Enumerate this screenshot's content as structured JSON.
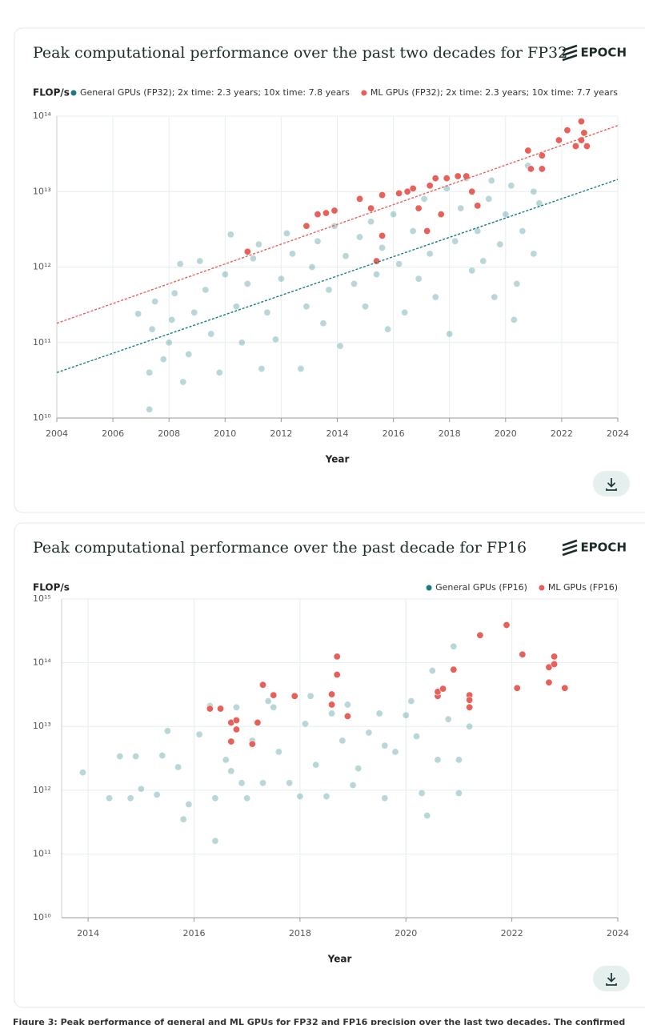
{
  "chart_data": [
    {
      "type": "scatter",
      "title": "Peak computational performance over the past two decades for FP32",
      "logo": "EPOCH",
      "y_label": "FLOP/s",
      "x_label": "Year",
      "log_y": true,
      "grid": true,
      "legend": "top-right",
      "xlim": [
        2004,
        2024
      ],
      "xticks": [
        2004,
        2006,
        2008,
        2010,
        2012,
        2014,
        2016,
        2018,
        2020,
        2022,
        2024
      ],
      "ylim": [
        10000000000.0,
        100000000000000.0
      ],
      "yticks": [
        {
          "value": 10000000000.0,
          "label": "10¹⁰"
        },
        {
          "value": 100000000000.0,
          "label": "10¹¹"
        },
        {
          "value": 1000000000000.0,
          "label": "10¹²"
        },
        {
          "value": 10000000000000.0,
          "label": "10¹³"
        },
        {
          "value": 100000000000000.0,
          "label": "10¹⁴"
        }
      ],
      "series": [
        {
          "name": "General GPUs (FP32); 2x time: 2.3 years; 10x time: 7.8 years",
          "color": "#187c80",
          "point_opacity": 0.3,
          "x": [
            2006.9,
            2007.3,
            2007.3,
            2007.4,
            2007.5,
            2007.8,
            2008.0,
            2008.1,
            2008.2,
            2008.4,
            2008.5,
            2008.7,
            2008.9,
            2009.1,
            2009.3,
            2009.5,
            2009.8,
            2010.0,
            2010.2,
            2010.4,
            2010.6,
            2010.8,
            2011.0,
            2011.2,
            2011.3,
            2011.5,
            2011.8,
            2012.0,
            2012.2,
            2012.4,
            2012.7,
            2012.9,
            2013.1,
            2013.3,
            2013.5,
            2013.7,
            2013.9,
            2014.1,
            2014.3,
            2014.6,
            2014.8,
            2015.0,
            2015.2,
            2015.4,
            2015.6,
            2015.8,
            2016.0,
            2016.2,
            2016.4,
            2016.7,
            2016.9,
            2017.1,
            2017.3,
            2017.5,
            2017.7,
            2017.9,
            2018.0,
            2018.2,
            2018.4,
            2018.6,
            2018.8,
            2019.0,
            2019.2,
            2019.4,
            2019.6,
            2019.8,
            2020.0,
            2020.2,
            2020.4,
            2020.6,
            2020.8,
            2021.0,
            2021.2,
            2021.0,
            2020.3,
            2019.5
          ],
          "values": [
            240000000000.0,
            13000000000.0,
            40000000000.0,
            150000000000.0,
            350000000000.0,
            60000000000.0,
            100000000000.0,
            200000000000.0,
            450000000000.0,
            1100000000000.0,
            30000000000.0,
            70000000000.0,
            250000000000.0,
            1200000000000.0,
            500000000000.0,
            130000000000.0,
            40000000000.0,
            800000000000.0,
            2700000000000.0,
            300000000000.0,
            100000000000.0,
            600000000000.0,
            1300000000000.0,
            2000000000000.0,
            45000000000.0,
            250000000000.0,
            110000000000.0,
            700000000000.0,
            2800000000000.0,
            1500000000000.0,
            45000000000.0,
            300000000000.0,
            1000000000000.0,
            2200000000000.0,
            180000000000.0,
            500000000000.0,
            3500000000000.0,
            90000000000.0,
            1400000000000.0,
            600000000000.0,
            2500000000000.0,
            300000000000.0,
            4000000000000.0,
            800000000000.0,
            1800000000000.0,
            150000000000.0,
            5000000000000.0,
            1100000000000.0,
            250000000000.0,
            3000000000000.0,
            700000000000.0,
            8000000000000.0,
            1500000000000.0,
            400000000000.0,
            5000000000000.0,
            11000000000000.0,
            130000000000.0,
            2200000000000.0,
            6000000000000.0,
            15000000000000.0,
            900000000000.0,
            3000000000000.0,
            1200000000000.0,
            8000000000000.0,
            400000000000.0,
            2000000000000.0,
            5000000000000.0,
            12000000000000.0,
            600000000000.0,
            3000000000000.0,
            22000000000000.0,
            1500000000000.0,
            7000000000000.0,
            10000000000000.0,
            200000000000.0,
            14000000000000.0
          ],
          "trendline": {
            "x": [
              2004,
              2024
            ],
            "values": [
              40000000000.0,
              14500000000000.0
            ]
          }
        },
        {
          "name": "ML GPUs (FP32); 2x time: 2.3 years; 10x time: 7.7 years",
          "color": "#e8605a",
          "point_opacity": 1,
          "x": [
            2010.8,
            2012.9,
            2013.3,
            2013.6,
            2013.9,
            2014.8,
            2015.2,
            2015.4,
            2015.6,
            2015.6,
            2016.2,
            2016.5,
            2016.7,
            2016.9,
            2017.2,
            2017.3,
            2017.5,
            2017.7,
            2017.9,
            2018.3,
            2018.6,
            2018.8,
            2019.0,
            2020.8,
            2020.9,
            2021.3,
            2021.3,
            2021.9,
            2022.2,
            2022.5,
            2022.7,
            2022.8,
            2022.9,
            2022.7
          ],
          "values": [
            1600000000000.0,
            3500000000000.0,
            5000000000000.0,
            5200000000000.0,
            5600000000000.0,
            8000000000000.0,
            6000000000000.0,
            1200000000000.0,
            2600000000000.0,
            9000000000000.0,
            9500000000000.0,
            10000000000000.0,
            11000000000000.0,
            6000000000000.0,
            3000000000000.0,
            12000000000000.0,
            15000000000000.0,
            5000000000000.0,
            15000000000000.0,
            16000000000000.0,
            16000000000000.0,
            10000000000000.0,
            6500000000000.0,
            35000000000000.0,
            20000000000000.0,
            30000000000000.0,
            20000000000000.0,
            48000000000000.0,
            65000000000000.0,
            40000000000000.0,
            85000000000000.0,
            60000000000000.0,
            40000000000000.0,
            48000000000000.0
          ],
          "trendline": {
            "x": [
              2004,
              2024
            ],
            "values": [
              180000000000.0,
              75000000000000.0
            ]
          }
        }
      ]
    },
    {
      "type": "scatter",
      "title": "Peak computational performance over the past decade for FP16",
      "logo": "EPOCH",
      "y_label": "FLOP/s",
      "x_label": "Year",
      "log_y": true,
      "grid": true,
      "legend": "top-right",
      "xlim": [
        2013.5,
        2024
      ],
      "xticks": [
        2014,
        2016,
        2018,
        2020,
        2022,
        2024
      ],
      "ylim": [
        10000000000.0,
        1000000000000000.0
      ],
      "yticks": [
        {
          "value": 10000000000.0,
          "label": "10¹⁰"
        },
        {
          "value": 100000000000.0,
          "label": "10¹¹"
        },
        {
          "value": 1000000000000.0,
          "label": "10¹²"
        },
        {
          "value": 10000000000000.0,
          "label": "10¹³"
        },
        {
          "value": 100000000000000.0,
          "label": "10¹⁴"
        },
        {
          "value": 1000000000000000.0,
          "label": "10¹⁵"
        }
      ],
      "series": [
        {
          "name": "General GPUs (FP16)",
          "color": "#187c80",
          "point_opacity": 0.3,
          "x": [
            2013.9,
            2014.4,
            2014.6,
            2014.8,
            2014.9,
            2015.0,
            2015.3,
            2015.4,
            2015.5,
            2015.7,
            2015.8,
            2015.9,
            2016.1,
            2016.3,
            2016.4,
            2016.4,
            2016.6,
            2016.7,
            2016.8,
            2016.9,
            2017.0,
            2017.1,
            2017.3,
            2017.4,
            2017.5,
            2017.6,
            2017.8,
            2018.0,
            2018.1,
            2018.2,
            2018.3,
            2018.5,
            2018.6,
            2018.8,
            2019.0,
            2019.1,
            2019.3,
            2019.5,
            2019.6,
            2019.8,
            2020.0,
            2020.1,
            2020.2,
            2020.3,
            2020.4,
            2020.5,
            2020.6,
            2020.8,
            2020.9,
            2021.0,
            2021.0,
            2021.2,
            2019.6,
            2018.9
          ],
          "values": [
            1900000000000.0,
            750000000000.0,
            3400000000000.0,
            750000000000.0,
            3400000000000.0,
            1050000000000.0,
            850000000000.0,
            3500000000000.0,
            8500000000000.0,
            2300000000000.0,
            350000000000.0,
            600000000000.0,
            7500000000000.0,
            21000000000000.0,
            160000000000.0,
            750000000000.0,
            3000000000000.0,
            2000000000000.0,
            20000000000000.0,
            1300000000000.0,
            750000000000.0,
            6000000000000.0,
            1300000000000.0,
            25000000000000.0,
            20000000000000.0,
            4000000000000.0,
            1300000000000.0,
            800000000000.0,
            11000000000000.0,
            30000000000000.0,
            2500000000000.0,
            800000000000.0,
            16000000000000.0,
            6000000000000.0,
            1200000000000.0,
            2200000000000.0,
            8000000000000.0,
            16000000000000.0,
            750000000000.0,
            4000000000000.0,
            15000000000000.0,
            25000000000000.0,
            7000000000000.0,
            900000000000.0,
            400000000000.0,
            75000000000000.0,
            3000000000000.0,
            13000000000000.0,
            180000000000000.0,
            900000000000.0,
            3000000000000.0,
            10000000000000.0,
            5000000000000.0,
            22000000000000.0
          ]
        },
        {
          "name": "ML GPUs (FP16)",
          "color": "#e8605a",
          "point_opacity": 1,
          "x": [
            2016.3,
            2016.5,
            2016.7,
            2016.7,
            2016.8,
            2016.8,
            2017.1,
            2017.2,
            2017.3,
            2017.5,
            2017.9,
            2018.6,
            2018.6,
            2018.7,
            2018.7,
            2018.9,
            2020.6,
            2020.6,
            2020.7,
            2020.9,
            2021.2,
            2021.2,
            2021.2,
            2021.4,
            2021.9,
            2022.1,
            2022.2,
            2022.7,
            2022.7,
            2022.8,
            2022.8,
            2023.0
          ],
          "values": [
            19000000000000.0,
            19000000000000.0,
            5800000000000.0,
            11500000000000.0,
            12500000000000.0,
            9000000000000.0,
            5300000000000.0,
            11500000000000.0,
            45000000000000.0,
            31000000000000.0,
            30000000000000.0,
            32000000000000.0,
            22000000000000.0,
            65000000000000.0,
            125000000000000.0,
            14500000000000.0,
            30000000000000.0,
            35000000000000.0,
            39000000000000.0,
            78000000000000.0,
            31000000000000.0,
            26000000000000.0,
            20000000000000.0,
            270000000000000.0,
            390000000000000.0,
            40000000000000.0,
            135000000000000.0,
            85000000000000.0,
            49000000000000.0,
            95000000000000.0,
            125000000000000.0,
            40000000000000.0
          ]
        }
      ]
    }
  ],
  "caption": "Figure 3: Peak performance of general and ML GPUs for FP32 and FP16 precision over the last two decades. The confirmed"
}
